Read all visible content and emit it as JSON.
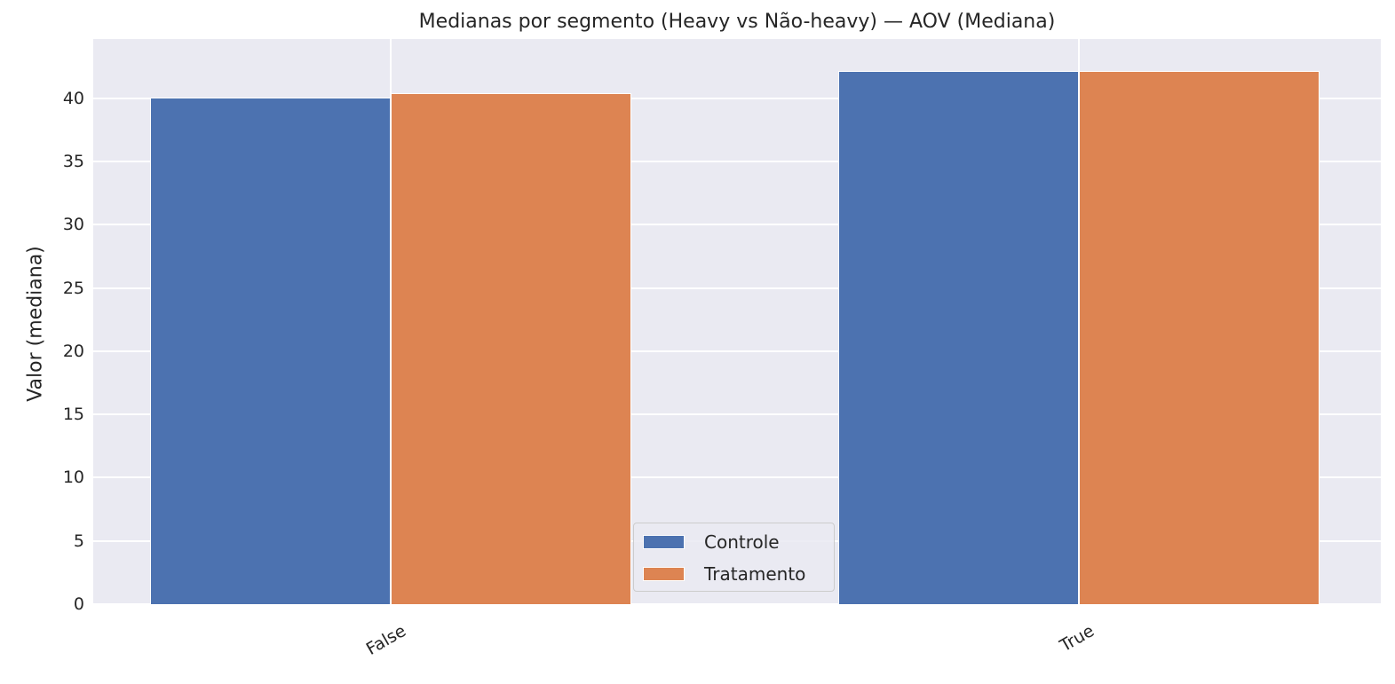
{
  "chart_data": {
    "type": "bar",
    "title": "Medianas por segmento (Heavy vs Não-heavy) — AOV (Mediana)",
    "xlabel": "",
    "ylabel": "Valor (mediana)",
    "categories": [
      "False",
      "True"
    ],
    "series": [
      {
        "name": "Controle",
        "color": "#4c72b0",
        "values": [
          40.1,
          42.2
        ]
      },
      {
        "name": "Tratamento",
        "color": "#dd8452",
        "values": [
          40.4,
          42.2
        ]
      }
    ],
    "ylim": [
      0,
      44.7
    ],
    "yticks": [
      0,
      5,
      10,
      15,
      20,
      25,
      30,
      35,
      40
    ],
    "grid": true,
    "legend_position": "lower center",
    "x_tick_rotation": 30
  },
  "colors": {
    "background": "#eaeaf2",
    "grid": "#ffffff",
    "controle": "#4c72b0",
    "tratamento": "#dd8452"
  }
}
